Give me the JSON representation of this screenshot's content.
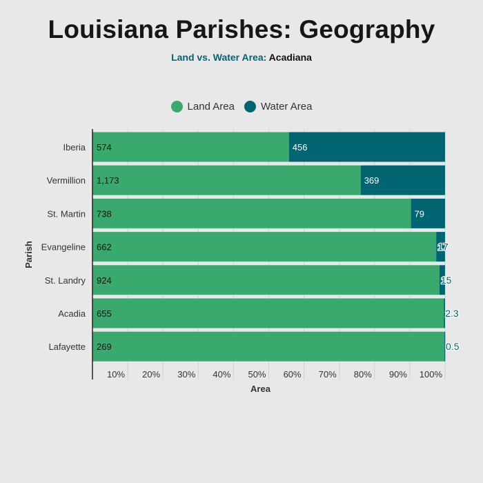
{
  "chart_data": {
    "type": "bar",
    "orientation": "horizontal",
    "stacked": "percent",
    "title": "Louisiana Parishes: Geography",
    "subtitle": "Land vs. Water Area:",
    "subtitle_region": "Acadiana",
    "xlabel": "Area",
    "ylabel": "Parish",
    "xlim": [
      0,
      100
    ],
    "x_ticks": [
      "10%",
      "20%",
      "30%",
      "40%",
      "50%",
      "60%",
      "70%",
      "80%",
      "90%",
      "100%"
    ],
    "legend_position": "top",
    "grid": true,
    "categories": [
      "Iberia",
      "Vermillion",
      "St. Martin",
      "Evangeline",
      "St. Landry",
      "Acadia",
      "Lafayette"
    ],
    "series": [
      {
        "name": "Land Area",
        "color": "#3aa96e",
        "labels": [
          "574",
          "1,173",
          "738",
          "662",
          "924",
          "655",
          "269"
        ],
        "values": [
          574,
          1173,
          738,
          662,
          924,
          655,
          269
        ]
      },
      {
        "name": "Water Area",
        "color": "#006471",
        "labels": [
          "456",
          "369",
          "79",
          "17",
          "15",
          "2.3",
          "0.5"
        ],
        "values": [
          456,
          369,
          79,
          17,
          15,
          2.3,
          0.5
        ]
      }
    ]
  }
}
